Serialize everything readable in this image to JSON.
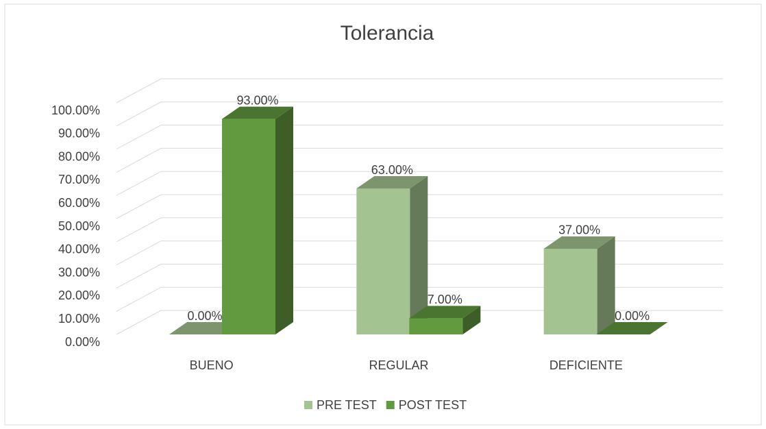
{
  "chart_data": {
    "type": "bar3d",
    "title": "Tolerancia",
    "categories": [
      "BUENO",
      "REGULAR",
      "DEFICIENTE"
    ],
    "series": [
      {
        "name": "PRE TEST",
        "color": "#a3c490",
        "values": [
          0,
          63,
          37
        ],
        "value_labels": [
          "0.00%",
          "63.00%",
          "37.00%"
        ]
      },
      {
        "name": "POST TEST",
        "color": "#629a3f",
        "values": [
          93,
          7,
          0
        ],
        "value_labels": [
          "93.00%",
          "7.00%",
          "0.00%"
        ]
      }
    ],
    "ylim": [
      0,
      100
    ],
    "yticks": [
      {
        "value": 0,
        "label": "0.00%"
      },
      {
        "value": 10,
        "label": "10.00%"
      },
      {
        "value": 20,
        "label": "20.00%"
      },
      {
        "value": 30,
        "label": "30.00%"
      },
      {
        "value": 40,
        "label": "40.00%"
      },
      {
        "value": 50,
        "label": "50.00%"
      },
      {
        "value": 60,
        "label": "60.00%"
      },
      {
        "value": 70,
        "label": "70.00%"
      },
      {
        "value": 80,
        "label": "80.00%"
      },
      {
        "value": 90,
        "label": "90.00%"
      },
      {
        "value": 100,
        "label": "100.00%"
      }
    ],
    "grid": true,
    "legend": "bottom"
  }
}
